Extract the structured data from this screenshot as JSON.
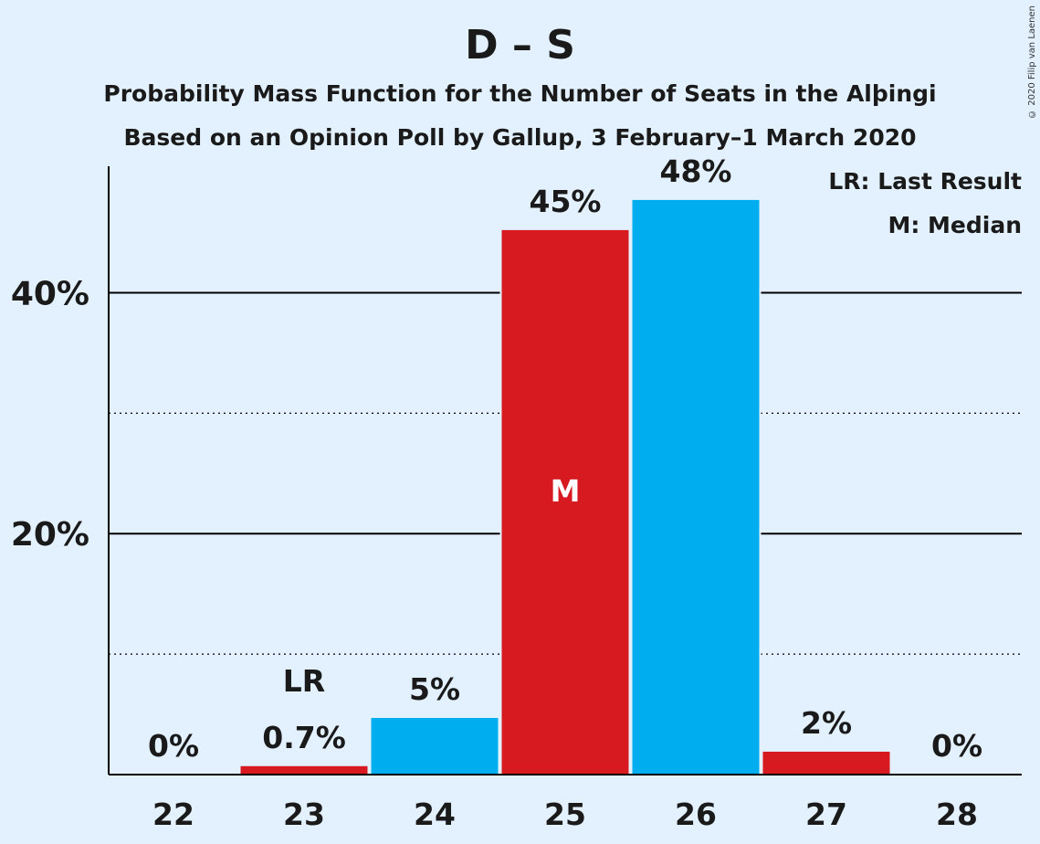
{
  "title": "D – S",
  "subtitle1": "Probability Mass Function for the Number of Seats in the Alþingi",
  "subtitle2": "Based on an Opinion Poll by Gallup, 3 February–1 March 2020",
  "copyright": "© 2020 Filip van Laenen",
  "legend": {
    "last_result": "LR: Last Result",
    "median": "M: Median"
  },
  "colors": {
    "background": "#e3f1ff",
    "red": "#d71920",
    "blue": "#00aeef"
  },
  "chart_data": {
    "type": "bar",
    "title": "D – S",
    "xlabel": "",
    "ylabel": "",
    "ylim": [
      0,
      50.5
    ],
    "grid": true,
    "legend_placement": "top-right",
    "categories": [
      "22",
      "23",
      "24",
      "25",
      "26",
      "27",
      "28"
    ],
    "values": [
      0,
      0.7,
      4.7,
      45.2,
      47.7,
      1.9,
      0
    ],
    "value_labels": [
      "0%",
      "0.7%",
      "5%",
      "45%",
      "48%",
      "2%",
      "0%"
    ],
    "bar_colors": [
      "red",
      "red",
      "blue",
      "red",
      "blue",
      "red",
      "red"
    ],
    "y_ticks": [
      {
        "value": 10,
        "label": "",
        "style": "dotted"
      },
      {
        "value": 20,
        "label": "20%",
        "style": "solid"
      },
      {
        "value": 30,
        "label": "",
        "style": "dotted"
      },
      {
        "value": 40,
        "label": "40%",
        "style": "solid"
      }
    ],
    "annotations": [
      {
        "category": "23",
        "text": "LR",
        "position": "above"
      },
      {
        "category": "25",
        "text": "M",
        "position": "inside"
      }
    ]
  }
}
